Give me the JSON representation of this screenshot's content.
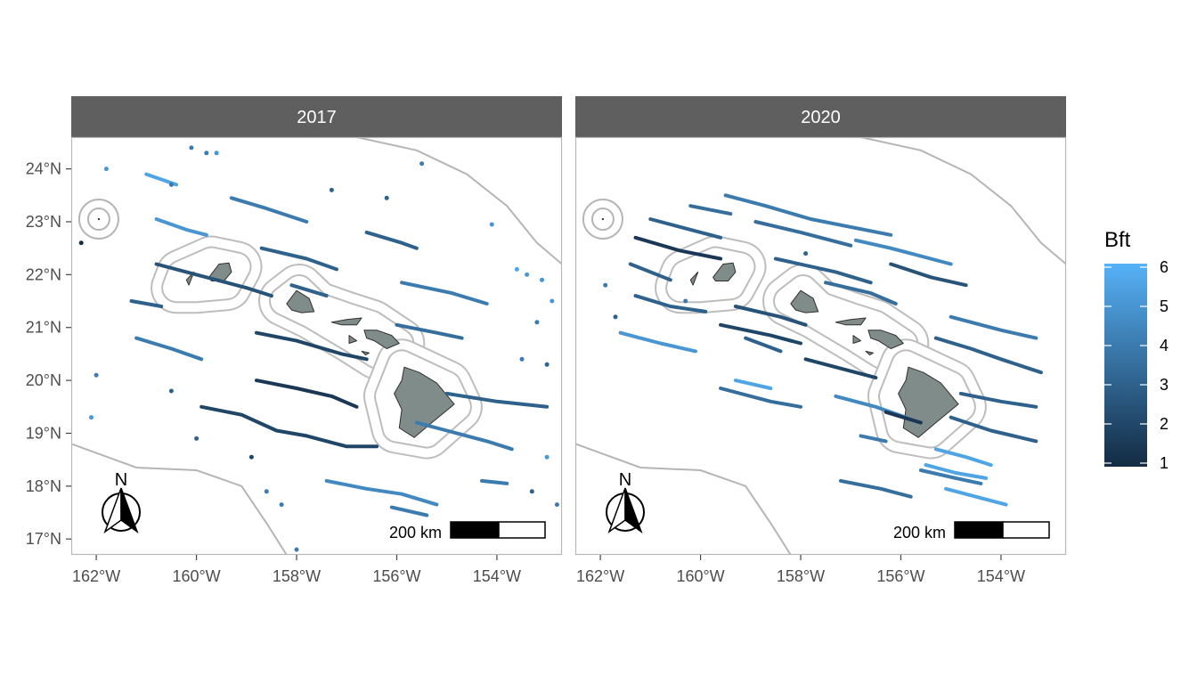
{
  "panels": [
    {
      "title": "2017",
      "lon_range": [
        -162.5,
        -152.7
      ],
      "lat_range": [
        16.7,
        24.6
      ],
      "tracks": [
        {
          "points": [
            [
              -161.0,
              23.9
            ],
            [
              -160.4,
              23.7
            ]
          ],
          "bft": 5.5
        },
        {
          "points": [
            [
              -159.3,
              23.45
            ],
            [
              -158.6,
              23.25
            ],
            [
              -157.8,
              23.0
            ]
          ],
          "bft": 4
        },
        {
          "points": [
            [
              -160.8,
              23.05
            ],
            [
              -160.2,
              22.85
            ],
            [
              -159.8,
              22.75
            ]
          ],
          "bft": 5
        },
        {
          "points": [
            [
              -156.6,
              22.8
            ],
            [
              -155.9,
              22.6
            ],
            [
              -155.6,
              22.5
            ]
          ],
          "bft": 3
        },
        {
          "points": [
            [
              -158.7,
              22.5
            ],
            [
              -157.8,
              22.3
            ],
            [
              -157.2,
              22.1
            ]
          ],
          "bft": 3
        },
        {
          "points": [
            [
              -160.8,
              22.2
            ],
            [
              -160.0,
              22.0
            ],
            [
              -159.0,
              21.75
            ],
            [
              -158.5,
              21.6
            ]
          ],
          "bft": 2.5
        },
        {
          "points": [
            [
              -158.1,
              21.8
            ],
            [
              -157.4,
              21.6
            ]
          ],
          "bft": 3
        },
        {
          "points": [
            [
              -155.9,
              21.85
            ],
            [
              -154.9,
              21.65
            ],
            [
              -154.2,
              21.45
            ]
          ],
          "bft": 4
        },
        {
          "points": [
            [
              -161.3,
              21.5
            ],
            [
              -160.7,
              21.4
            ]
          ],
          "bft": 3
        },
        {
          "points": [
            [
              -156.0,
              21.05
            ],
            [
              -155.2,
              20.9
            ],
            [
              -154.7,
              20.8
            ]
          ],
          "bft": 3.5
        },
        {
          "points": [
            [
              -161.2,
              20.8
            ],
            [
              -160.5,
              20.6
            ],
            [
              -159.9,
              20.4
            ]
          ],
          "bft": 4
        },
        {
          "points": [
            [
              -158.8,
              20.9
            ],
            [
              -158.0,
              20.75
            ],
            [
              -157.1,
              20.5
            ],
            [
              -156.6,
              20.4
            ]
          ],
          "bft": 2
        },
        {
          "points": [
            [
              -158.8,
              20.0
            ],
            [
              -158.0,
              19.85
            ],
            [
              -157.3,
              19.7
            ],
            [
              -156.8,
              19.5
            ]
          ],
          "bft": 1.5
        },
        {
          "points": [
            [
              -155.0,
              19.75
            ],
            [
              -154.0,
              19.6
            ],
            [
              -153.0,
              19.5
            ]
          ],
          "bft": 3
        },
        {
          "points": [
            [
              -159.9,
              19.5
            ],
            [
              -159.1,
              19.35
            ],
            [
              -158.4,
              19.05
            ],
            [
              -157.8,
              18.95
            ],
            [
              -157.0,
              18.75
            ],
            [
              -156.4,
              18.75
            ]
          ],
          "bft": 2
        },
        {
          "points": [
            [
              -155.6,
              19.2
            ],
            [
              -155.0,
              19.05
            ],
            [
              -154.2,
              18.85
            ],
            [
              -153.7,
              18.7
            ]
          ],
          "bft": 4
        },
        {
          "points": [
            [
              -157.4,
              18.1
            ],
            [
              -156.6,
              17.95
            ],
            [
              -155.9,
              17.85
            ],
            [
              -155.2,
              17.65
            ]
          ],
          "bft": 4.5
        },
        {
          "points": [
            [
              -154.3,
              18.1
            ],
            [
              -153.8,
              18.05
            ]
          ],
          "bft": 4
        },
        {
          "points": [
            [
              -156.1,
              17.6
            ],
            [
              -155.4,
              17.45
            ]
          ],
          "bft": 4
        }
      ],
      "dots": [
        {
          "lon": -160.1,
          "lat": 24.4,
          "bft": 4
        },
        {
          "lon": -159.8,
          "lat": 24.3,
          "bft": 4
        },
        {
          "lon": -159.6,
          "lat": 24.3,
          "bft": 5
        },
        {
          "lon": -155.5,
          "lat": 24.1,
          "bft": 4
        },
        {
          "lon": -157.3,
          "lat": 23.6,
          "bft": 3
        },
        {
          "lon": -161.8,
          "lat": 24.0,
          "bft": 5
        },
        {
          "lon": -160.5,
          "lat": 23.7,
          "bft": 4
        },
        {
          "lon": -156.2,
          "lat": 23.45,
          "bft": 3
        },
        {
          "lon": -154.1,
          "lat": 22.95,
          "bft": 5
        },
        {
          "lon": -162.3,
          "lat": 22.6,
          "bft": 1
        },
        {
          "lon": -153.6,
          "lat": 22.1,
          "bft": 5.5
        },
        {
          "lon": -153.4,
          "lat": 22.0,
          "bft": 5
        },
        {
          "lon": -153.1,
          "lat": 21.9,
          "bft": 5
        },
        {
          "lon": -152.9,
          "lat": 21.5,
          "bft": 5
        },
        {
          "lon": -153.2,
          "lat": 21.1,
          "bft": 4
        },
        {
          "lon": -153.0,
          "lat": 20.3,
          "bft": 3
        },
        {
          "lon": -153.5,
          "lat": 20.4,
          "bft": 4
        },
        {
          "lon": -162.0,
          "lat": 20.1,
          "bft": 4
        },
        {
          "lon": -160.5,
          "lat": 19.8,
          "bft": 3
        },
        {
          "lon": -162.1,
          "lat": 19.3,
          "bft": 5
        },
        {
          "lon": -160.0,
          "lat": 18.9,
          "bft": 3
        },
        {
          "lon": -158.9,
          "lat": 18.55,
          "bft": 2
        },
        {
          "lon": -158.6,
          "lat": 17.9,
          "bft": 4
        },
        {
          "lon": -158.3,
          "lat": 17.65,
          "bft": 4
        },
        {
          "lon": -153.0,
          "lat": 18.55,
          "bft": 5
        },
        {
          "lon": -153.3,
          "lat": 17.9,
          "bft": 3
        },
        {
          "lon": -152.8,
          "lat": 17.65,
          "bft": 4
        },
        {
          "lon": -158.0,
          "lat": 16.8,
          "bft": 4
        }
      ]
    },
    {
      "title": "2020",
      "lon_range": [
        -162.5,
        -152.7
      ],
      "lat_range": [
        16.7,
        24.6
      ],
      "tracks": [
        {
          "points": [
            [
              -159.5,
              23.5
            ],
            [
              -158.7,
              23.3
            ],
            [
              -157.8,
              23.05
            ],
            [
              -157.0,
              22.9
            ],
            [
              -156.2,
              22.75
            ]
          ],
          "bft": 4
        },
        {
          "points": [
            [
              -160.2,
              23.3
            ],
            [
              -159.4,
              23.15
            ]
          ],
          "bft": 3.5
        },
        {
          "points": [
            [
              -161.0,
              23.05
            ],
            [
              -160.2,
              22.85
            ],
            [
              -159.6,
              22.7
            ]
          ],
          "bft": 3
        },
        {
          "points": [
            [
              -158.9,
              23.0
            ],
            [
              -158.0,
              22.8
            ],
            [
              -157.0,
              22.55
            ]
          ],
          "bft": 3.5
        },
        {
          "points": [
            [
              -156.9,
              22.65
            ],
            [
              -156.2,
              22.5
            ],
            [
              -155.0,
              22.2
            ]
          ],
          "bft": 4.5
        },
        {
          "points": [
            [
              -161.3,
              22.7
            ],
            [
              -160.4,
              22.45
            ],
            [
              -159.6,
              22.3
            ]
          ],
          "bft": 1.5
        },
        {
          "points": [
            [
              -158.5,
              22.3
            ],
            [
              -157.3,
              22.05
            ],
            [
              -156.6,
              21.85
            ]
          ],
          "bft": 3
        },
        {
          "points": [
            [
              -156.2,
              22.2
            ],
            [
              -155.4,
              21.95
            ],
            [
              -154.7,
              21.8
            ]
          ],
          "bft": 2.5
        },
        {
          "points": [
            [
              -161.4,
              22.2
            ],
            [
              -160.6,
              21.9
            ]
          ],
          "bft": 3
        },
        {
          "points": [
            [
              -157.5,
              21.85
            ],
            [
              -156.6,
              21.65
            ],
            [
              -156.1,
              21.45
            ]
          ],
          "bft": 3.5
        },
        {
          "points": [
            [
              -161.3,
              21.6
            ],
            [
              -160.6,
              21.4
            ],
            [
              -159.9,
              21.3
            ]
          ],
          "bft": 3
        },
        {
          "points": [
            [
              -159.3,
              21.4
            ],
            [
              -158.4,
              21.2
            ],
            [
              -157.9,
              21.05
            ]
          ],
          "bft": 2.5
        },
        {
          "points": [
            [
              -161.6,
              20.9
            ],
            [
              -160.8,
              20.7
            ],
            [
              -160.1,
              20.55
            ]
          ],
          "bft": 5
        },
        {
          "points": [
            [
              -159.6,
              21.05
            ],
            [
              -158.6,
              20.85
            ],
            [
              -158.0,
              20.7
            ]
          ],
          "bft": 2
        },
        {
          "points": [
            [
              -159.1,
              20.8
            ],
            [
              -158.4,
              20.55
            ]
          ],
          "bft": 3
        },
        {
          "points": [
            [
              -155.0,
              21.2
            ],
            [
              -154.0,
              20.95
            ],
            [
              -153.3,
              20.8
            ]
          ],
          "bft": 4
        },
        {
          "points": [
            [
              -155.3,
              20.8
            ],
            [
              -154.6,
              20.6
            ],
            [
              -154.0,
              20.4
            ],
            [
              -153.2,
              20.15
            ]
          ],
          "bft": 3
        },
        {
          "points": [
            [
              -157.9,
              20.4
            ],
            [
              -157.1,
              20.2
            ],
            [
              -156.5,
              20.05
            ]
          ],
          "bft": 2
        },
        {
          "points": [
            [
              -159.3,
              20.0
            ],
            [
              -158.6,
              19.85
            ]
          ],
          "bft": 5.5
        },
        {
          "points": [
            [
              -159.6,
              19.85
            ],
            [
              -158.6,
              19.6
            ],
            [
              -158.0,
              19.5
            ]
          ],
          "bft": 3.5
        },
        {
          "points": [
            [
              -157.3,
              19.7
            ],
            [
              -156.5,
              19.5
            ],
            [
              -155.9,
              19.3
            ]
          ],
          "bft": 4.5
        },
        {
          "points": [
            [
              -156.3,
              19.4
            ],
            [
              -155.6,
              19.2
            ]
          ],
          "bft": 1.5
        },
        {
          "points": [
            [
              -154.8,
              19.75
            ],
            [
              -154.0,
              19.6
            ],
            [
              -153.3,
              19.5
            ]
          ],
          "bft": 3
        },
        {
          "points": [
            [
              -155.0,
              19.3
            ],
            [
              -154.2,
              19.05
            ],
            [
              -153.3,
              18.85
            ]
          ],
          "bft": 3
        },
        {
          "points": [
            [
              -156.8,
              18.95
            ],
            [
              -156.3,
              18.85
            ]
          ],
          "bft": 4
        },
        {
          "points": [
            [
              -155.3,
              18.7
            ],
            [
              -154.7,
              18.55
            ],
            [
              -154.2,
              18.4
            ]
          ],
          "bft": 5.5
        },
        {
          "points": [
            [
              -155.5,
              18.4
            ],
            [
              -154.9,
              18.25
            ],
            [
              -154.3,
              18.15
            ]
          ],
          "bft": 5.5
        },
        {
          "points": [
            [
              -155.6,
              18.3
            ],
            [
              -154.9,
              18.15
            ],
            [
              -154.4,
              18.05
            ]
          ],
          "bft": 4
        },
        {
          "points": [
            [
              -157.2,
              18.1
            ],
            [
              -156.4,
              17.95
            ],
            [
              -155.8,
              17.8
            ]
          ],
          "bft": 3.5
        },
        {
          "points": [
            [
              -155.1,
              17.95
            ],
            [
              -154.3,
              17.75
            ],
            [
              -153.9,
              17.65
            ]
          ],
          "bft": 5.5
        }
      ],
      "dots": [
        {
          "lon": -161.9,
          "lat": 21.8,
          "bft": 4
        },
        {
          "lon": -161.7,
          "lat": 21.2,
          "bft": 3
        },
        {
          "lon": -160.3,
          "lat": 21.5,
          "bft": 4
        },
        {
          "lon": -157.9,
          "lat": 22.4,
          "bft": 3
        }
      ]
    }
  ],
  "legend": {
    "title": "Bft",
    "ticks": [
      6,
      5,
      4,
      3,
      2,
      1
    ],
    "low_color": "#132B43",
    "high_color": "#56B1F7"
  },
  "axes": {
    "x_ticks": [
      {
        "lon": -162,
        "label": "162°W"
      },
      {
        "lon": -160,
        "label": "160°W"
      },
      {
        "lon": -158,
        "label": "158°W"
      },
      {
        "lon": -156,
        "label": "156°W"
      },
      {
        "lon": -154,
        "label": "154°W"
      }
    ],
    "y_ticks": [
      {
        "lat": 24,
        "label": "24°N"
      },
      {
        "lat": 23,
        "label": "23°N"
      },
      {
        "lat": 22,
        "label": "22°N"
      },
      {
        "lat": 21,
        "label": "21°N"
      },
      {
        "lat": 20,
        "label": "20°N"
      },
      {
        "lat": 19,
        "label": "19°N"
      },
      {
        "lat": 18,
        "label": "18°N"
      },
      {
        "lat": 17,
        "label": "17°N"
      }
    ]
  },
  "north_arrow_label": "N",
  "scale_bar_label": "200 km",
  "colors": {
    "strip": "#5f5f5f",
    "land": "#7f8c89",
    "boundary": "#b5b5b5",
    "panel_border": "#b8b8b8"
  }
}
